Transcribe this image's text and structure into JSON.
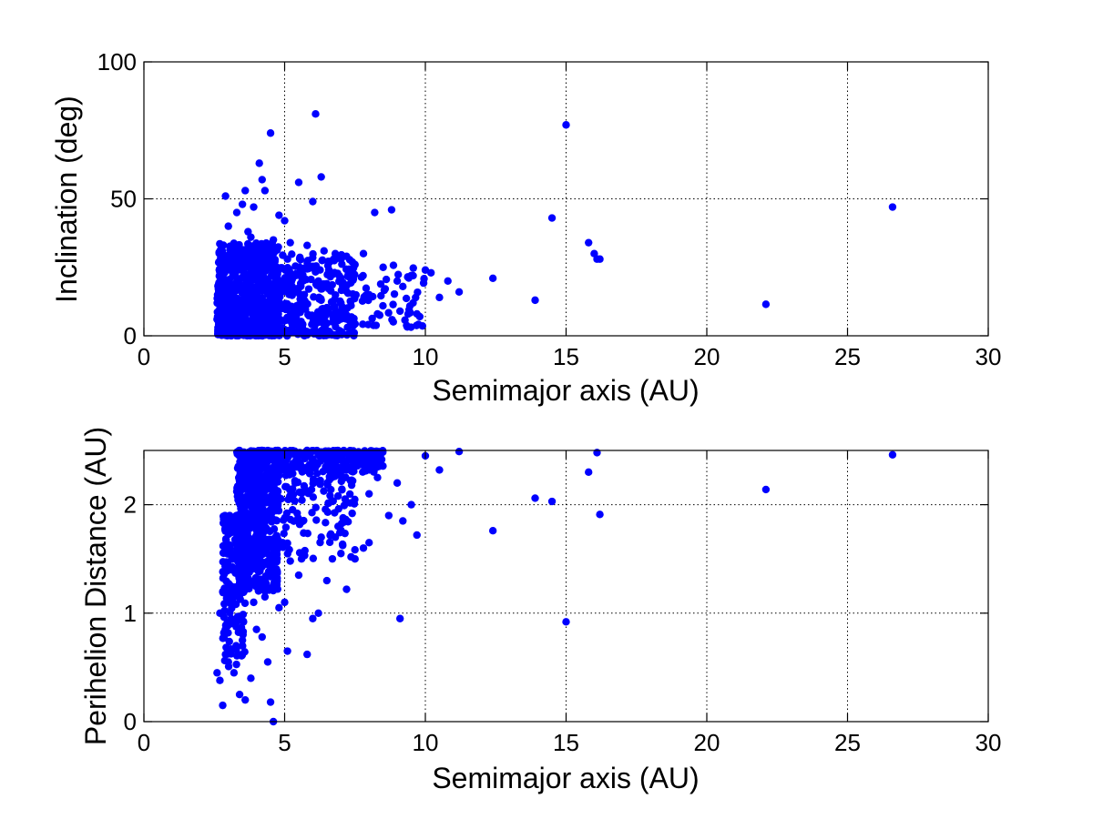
{
  "figure": {
    "background": "#ffffff",
    "marker_color": "#0000ff"
  },
  "chart_data": [
    {
      "type": "scatter",
      "xlabel": "Semimajor axis (AU)",
      "ylabel": "Inclination (deg)",
      "xlim": [
        0,
        30
      ],
      "ylim": [
        0,
        100
      ],
      "xticks": [
        0,
        5,
        10,
        15,
        20,
        25,
        30
      ],
      "yticks": [
        0,
        50,
        100
      ],
      "grid": true,
      "series": [
        {
          "color": "#0000ff",
          "x": [
            2.9,
            3.0,
            3.3,
            3.5,
            3.6,
            3.7,
            3.8,
            3.9,
            4.1,
            4.2,
            4.3,
            4.5,
            4.6,
            4.8,
            5.0,
            5.2,
            5.5,
            5.8,
            6.0,
            6.1,
            6.3,
            6.4,
            6.6,
            6.8,
            7.0,
            7.2,
            7.5,
            7.8,
            8.0,
            8.2,
            8.5,
            8.8,
            9.0,
            9.2,
            9.5,
            9.8,
            10.0,
            10.2,
            10.5,
            10.8,
            11.2,
            2.7,
            2.8,
            3.1,
            3.4,
            3.6,
            3.9,
            4.0,
            4.4,
            4.7,
            5.1,
            5.6,
            6.2,
            2.6,
            2.9,
            3.2,
            3.8,
            4.2,
            4.9,
            5.4,
            6.5,
            7.0,
            7.9,
            8.3,
            9.1,
            9.7
          ],
          "y": [
            51,
            40,
            45,
            48,
            53,
            38,
            36,
            47,
            63,
            57,
            53,
            74,
            35,
            44,
            42,
            34,
            56,
            33,
            49,
            81,
            58,
            31,
            27,
            30,
            28,
            29,
            26,
            30,
            15,
            45,
            25,
            46,
            20,
            18,
            22,
            7,
            24,
            23,
            14,
            20,
            16,
            10,
            18,
            30,
            28,
            25,
            22,
            32,
            20,
            15,
            28,
            24,
            20,
            6,
            12,
            9,
            15,
            18,
            10,
            22,
            19,
            12,
            14,
            8,
            9,
            8
          ]
        },
        {
          "color": "#0000ff",
          "x": [
            12.4,
            13.9,
            14.5,
            15.0,
            15.8,
            16.0,
            16.1,
            16.2,
            22.1,
            26.6
          ],
          "y": [
            21,
            13,
            43,
            77,
            34,
            30,
            28,
            28,
            11.5,
            47
          ]
        }
      ],
      "clusters": [
        {
          "x_range": [
            2.6,
            4.8
          ],
          "y_range": [
            0,
            34
          ],
          "count": 700
        },
        {
          "x_range": [
            4.8,
            7.5
          ],
          "y_range": [
            0,
            30
          ],
          "count": 280
        },
        {
          "x_range": [
            7.5,
            10.0
          ],
          "y_range": [
            3,
            26
          ],
          "count": 50
        }
      ]
    },
    {
      "type": "scatter",
      "xlabel": "Semimajor axis (AU)",
      "ylabel": "Perihelion Distance (AU)",
      "xlim": [
        0,
        30
      ],
      "ylim": [
        0,
        2.5
      ],
      "xticks": [
        0,
        5,
        10,
        15,
        20,
        25,
        30
      ],
      "yticks": [
        0,
        1,
        2
      ],
      "grid": true,
      "series": [
        {
          "color": "#0000ff",
          "x": [
            2.6,
            2.7,
            2.8,
            2.9,
            3.0,
            3.2,
            3.4,
            3.6,
            3.8,
            4.0,
            4.2,
            4.4,
            4.6,
            4.8,
            5.0,
            5.1,
            5.5,
            5.8,
            6.0,
            6.2,
            6.5,
            6.8,
            7.0,
            7.2,
            7.5,
            7.8,
            8.0,
            8.3,
            8.7,
            9.0,
            9.1,
            9.5,
            9.7,
            10.0,
            10.5,
            11.2,
            2.7,
            3.1,
            3.5,
            3.9,
            4.3,
            4.5,
            5.2,
            5.6,
            6.3,
            6.9,
            7.4,
            8.0,
            9.2
          ],
          "y": [
            0.45,
            0.38,
            0.15,
            0.62,
            0.55,
            0.45,
            0.25,
            0.2,
            0.4,
            0.85,
            0.78,
            0.55,
            0.0,
            1.05,
            1.1,
            0.65,
            1.35,
            0.62,
            0.95,
            1.0,
            1.3,
            1.7,
            1.55,
            1.22,
            1.5,
            1.6,
            1.65,
            2.25,
            1.9,
            2.2,
            0.95,
            2.0,
            1.72,
            2.45,
            2.32,
            2.49,
            1.0,
            0.95,
            0.75,
            1.1,
            1.15,
            0.18,
            1.48,
            1.5,
            1.7,
            1.8,
            1.92,
            2.1,
            1.85
          ]
        },
        {
          "color": "#0000ff",
          "x": [
            12.4,
            13.9,
            14.5,
            15.0,
            15.8,
            16.1,
            16.2,
            22.1,
            26.6
          ],
          "y": [
            1.76,
            2.06,
            2.03,
            0.92,
            2.3,
            2.48,
            1.91,
            2.14,
            2.46
          ]
        }
      ],
      "clusters": [
        {
          "x_range": [
            3.3,
            4.8
          ],
          "y_range": [
            1.2,
            2.5
          ],
          "count": 600
        },
        {
          "x_range": [
            4.8,
            8.5
          ],
          "y_range": [
            2.3,
            2.5
          ],
          "count": 200
        },
        {
          "x_range": [
            2.8,
            3.6
          ],
          "y_range": [
            0.5,
            1.9
          ],
          "count": 180
        },
        {
          "x_range": [
            4.5,
            7.5
          ],
          "y_range": [
            1.5,
            2.35
          ],
          "count": 160
        }
      ]
    }
  ]
}
